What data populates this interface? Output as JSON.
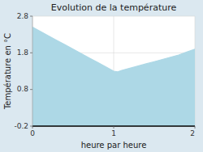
{
  "chart_data": {
    "type": "area",
    "title": "Evolution de la température",
    "xlabel": "heure par heure",
    "ylabel": "Température en °C",
    "x": [
      0,
      0.1,
      0.2,
      0.3,
      0.4,
      0.5,
      0.6,
      0.7,
      0.8,
      0.9,
      1.0,
      1.05,
      1.1,
      1.2,
      1.3,
      1.4,
      1.5,
      1.6,
      1.7,
      1.8,
      1.9,
      2.0
    ],
    "values": [
      2.5,
      2.38,
      2.26,
      2.14,
      2.02,
      1.9,
      1.78,
      1.66,
      1.54,
      1.42,
      1.3,
      1.28,
      1.32,
      1.38,
      1.44,
      1.5,
      1.56,
      1.62,
      1.68,
      1.74,
      1.82,
      1.9
    ],
    "color": "#add8e6",
    "xlim": [
      0,
      2
    ],
    "ylim": [
      -0.2,
      2.8
    ],
    "xticks": [
      0,
      1,
      2
    ],
    "yticks": [
      -0.2,
      0.8,
      1.8,
      2.8
    ],
    "grid": true
  }
}
